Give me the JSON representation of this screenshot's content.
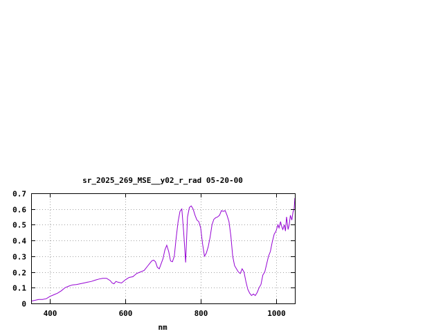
{
  "chart_data": {
    "type": "line",
    "title": "sr_2025_269_MSE__y02_r_rad 05-20-00",
    "xlabel": "nm",
    "ylabel": "",
    "xlim": [
      350,
      1050
    ],
    "ylim": [
      0,
      0.7
    ],
    "x_ticks": [
      400,
      600,
      800,
      1000
    ],
    "x_tick_labels": [
      "400",
      "600",
      "800",
      "1000"
    ],
    "y_ticks": [
      0,
      0.1,
      0.2,
      0.3,
      0.4,
      0.5,
      0.6,
      0.7
    ],
    "y_tick_labels": [
      "0",
      "0.1",
      "0.2",
      "0.3",
      "0.4",
      "0.5",
      "0.6",
      "0.7"
    ],
    "grid": true,
    "series": [
      {
        "color": "#9400d3",
        "x": [
          350,
          360,
          370,
          380,
          390,
          400,
          410,
          420,
          430,
          440,
          450,
          460,
          470,
          480,
          490,
          500,
          510,
          520,
          530,
          540,
          550,
          560,
          565,
          570,
          575,
          580,
          590,
          600,
          610,
          620,
          630,
          640,
          650,
          660,
          670,
          675,
          680,
          685,
          690,
          700,
          705,
          710,
          715,
          720,
          725,
          730,
          735,
          740,
          745,
          750,
          755,
          760,
          765,
          770,
          775,
          780,
          785,
          790,
          795,
          800,
          805,
          810,
          815,
          820,
          825,
          830,
          835,
          840,
          845,
          850,
          855,
          860,
          865,
          870,
          875,
          880,
          885,
          890,
          895,
          900,
          905,
          910,
          915,
          920,
          925,
          930,
          935,
          940,
          945,
          950,
          955,
          960,
          965,
          970,
          975,
          980,
          985,
          990,
          995,
          1000,
          1005,
          1008,
          1012,
          1015,
          1018,
          1022,
          1025,
          1028,
          1032,
          1035,
          1038,
          1042,
          1045,
          1048,
          1050
        ],
        "y": [
          0.015,
          0.02,
          0.025,
          0.025,
          0.03,
          0.045,
          0.055,
          0.065,
          0.08,
          0.1,
          0.11,
          0.118,
          0.12,
          0.125,
          0.13,
          0.135,
          0.14,
          0.148,
          0.155,
          0.16,
          0.16,
          0.145,
          0.13,
          0.125,
          0.14,
          0.135,
          0.13,
          0.15,
          0.165,
          0.17,
          0.19,
          0.2,
          0.21,
          0.24,
          0.27,
          0.275,
          0.265,
          0.23,
          0.22,
          0.285,
          0.34,
          0.37,
          0.33,
          0.27,
          0.265,
          0.3,
          0.42,
          0.52,
          0.585,
          0.6,
          0.45,
          0.26,
          0.55,
          0.61,
          0.62,
          0.6,
          0.56,
          0.53,
          0.52,
          0.48,
          0.38,
          0.3,
          0.32,
          0.36,
          0.42,
          0.5,
          0.535,
          0.545,
          0.55,
          0.56,
          0.59,
          0.585,
          0.59,
          0.56,
          0.52,
          0.43,
          0.3,
          0.24,
          0.22,
          0.2,
          0.19,
          0.22,
          0.2,
          0.14,
          0.09,
          0.065,
          0.05,
          0.06,
          0.05,
          0.07,
          0.1,
          0.12,
          0.18,
          0.2,
          0.25,
          0.3,
          0.33,
          0.39,
          0.44,
          0.46,
          0.5,
          0.48,
          0.52,
          0.49,
          0.47,
          0.5,
          0.46,
          0.55,
          0.47,
          0.5,
          0.56,
          0.53,
          0.58,
          0.6,
          0.67
        ]
      }
    ]
  }
}
